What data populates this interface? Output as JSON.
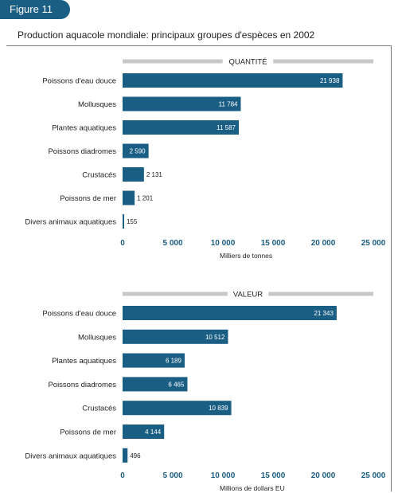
{
  "figure_label": "Figure 11",
  "title": "Production aquacole mondiale: principaux groupes d'espèces en 2002",
  "colors": {
    "bar": "#1a5e84",
    "accent": "#1a5e84",
    "header_band": "#c8c8c8"
  },
  "chart_data": [
    {
      "type": "bar",
      "orientation": "horizontal",
      "title": "QUANTITÉ",
      "xlabel": "Milliers de tonnes",
      "xlim": [
        0,
        25000
      ],
      "ticks": [
        "0",
        "5 000",
        "10 000",
        "15 000",
        "20 000",
        "25 000"
      ],
      "categories": [
        "Poissons d'eau douce",
        "Mollusques",
        "Plantes aquatiques",
        "Poissons diadromes",
        "Crustacés",
        "Poissons de mer",
        "Divers animaux aquatiques"
      ],
      "values": [
        21938,
        11784,
        11587,
        2590,
        2131,
        1201,
        155
      ],
      "value_labels": [
        "21 938",
        "11 784",
        "11 587",
        "2 590",
        "2 131",
        "1 201",
        "155"
      ]
    },
    {
      "type": "bar",
      "orientation": "horizontal",
      "title": "VALEUR",
      "xlabel": "Millions de dollars EU",
      "xlim": [
        0,
        25000
      ],
      "ticks": [
        "0",
        "5 000",
        "10 000",
        "15 000",
        "20 000",
        "25 000"
      ],
      "categories": [
        "Poissons d'eau douce",
        "Mollusques",
        "Plantes aquatiques",
        "Poissons diadromes",
        "Crustacés",
        "Poissons de mer",
        "Divers animaux aquatiques"
      ],
      "values": [
        21343,
        10512,
        6189,
        6465,
        10839,
        4144,
        496
      ],
      "value_labels": [
        "21 343",
        "10 512",
        "6 189",
        "6 465",
        "10 839",
        "4 144",
        "496"
      ]
    }
  ]
}
